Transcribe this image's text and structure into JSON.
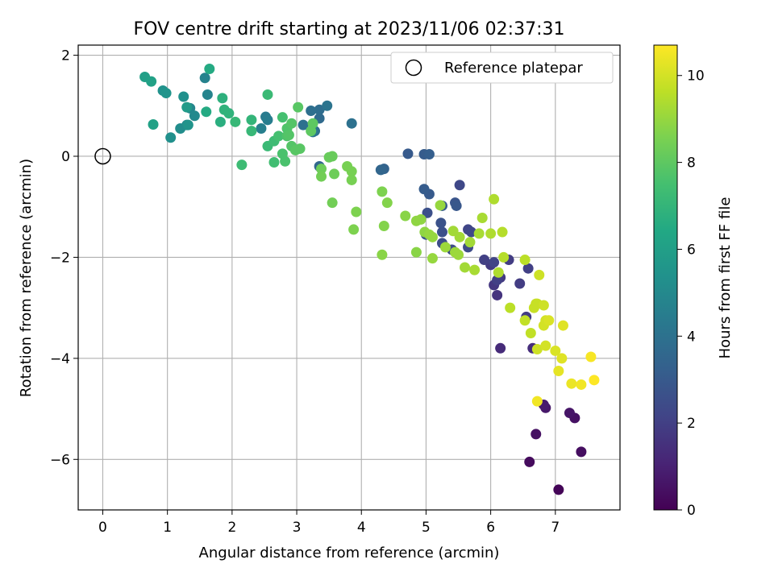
{
  "chart_data": {
    "type": "scatter",
    "title": "FOV centre drift starting at 2023/11/06 02:37:31",
    "xlabel": "Angular distance from reference (arcmin)",
    "ylabel": "Rotation from reference (arcmin)",
    "xlim": [
      -0.38,
      8.0
    ],
    "ylim": [
      -7.0,
      2.2
    ],
    "xticks": [
      "0",
      "1",
      "2",
      "3",
      "4",
      "5",
      "6",
      "7"
    ],
    "yticks": [
      "2",
      "0",
      "−2",
      "−4",
      "−6"
    ],
    "xtick_values": [
      0,
      1,
      2,
      3,
      4,
      5,
      6,
      7
    ],
    "ytick_values": [
      2,
      0,
      -2,
      -4,
      -6
    ],
    "grid": true,
    "legend": {
      "placement": "top-right",
      "entries": [
        "Reference platepar"
      ]
    },
    "reference_point": {
      "name": "Reference platepar",
      "x": 0,
      "y": 0
    },
    "colorbar": {
      "label": "Hours from first FF file",
      "range": [
        0,
        10.7
      ],
      "ticks": [
        "0",
        "2",
        "4",
        "6",
        "8",
        "10"
      ],
      "tick_values": [
        0,
        2,
        4,
        6,
        8,
        10
      ],
      "colormap": "viridis"
    },
    "points": [
      [
        7.05,
        -6.6,
        0.1
      ],
      [
        6.6,
        -6.05,
        0.3
      ],
      [
        7.4,
        -5.85,
        0.4
      ],
      [
        6.7,
        -5.5,
        0.5
      ],
      [
        7.3,
        -5.18,
        0.5
      ],
      [
        7.22,
        -5.08,
        0.6
      ],
      [
        6.85,
        -4.98,
        0.7
      ],
      [
        6.82,
        -4.92,
        0.8
      ],
      [
        6.15,
        -3.8,
        1.3
      ],
      [
        6.65,
        -3.8,
        1.4
      ],
      [
        6.1,
        -2.75,
        1.6
      ],
      [
        6.05,
        -2.55,
        1.7
      ],
      [
        6.15,
        -2.4,
        1.8
      ],
      [
        6.45,
        -2.52,
        1.9
      ],
      [
        6.58,
        -2.22,
        2.0
      ],
      [
        6.28,
        -2.05,
        1.9
      ],
      [
        6.0,
        -2.15,
        1.8
      ],
      [
        5.9,
        -2.05,
        2.0
      ],
      [
        6.05,
        -2.1,
        2.1
      ],
      [
        6.55,
        -3.18,
        1.9
      ],
      [
        6.1,
        -2.45,
        2.0
      ],
      [
        5.52,
        -0.57,
        2.3
      ],
      [
        5.65,
        -1.45,
        2.2
      ],
      [
        5.7,
        -1.5,
        2.3
      ],
      [
        5.65,
        -1.8,
        2.4
      ],
      [
        5.4,
        -1.85,
        2.4
      ],
      [
        5.25,
        -1.72,
        2.5
      ],
      [
        5.25,
        -1.5,
        2.6
      ],
      [
        5.23,
        -1.32,
        2.7
      ],
      [
        5.02,
        -1.12,
        2.6
      ],
      [
        5.0,
        -1.55,
        2.8
      ],
      [
        5.45,
        -0.92,
        2.8
      ],
      [
        5.47,
        -0.98,
        2.9
      ],
      [
        5.25,
        -0.98,
        3.0
      ],
      [
        5.05,
        -0.75,
        3.0
      ],
      [
        4.97,
        -0.65,
        3.1
      ],
      [
        4.72,
        0.05,
        3.0
      ],
      [
        4.97,
        0.04,
        3.1
      ],
      [
        5.05,
        0.04,
        3.2
      ],
      [
        4.35,
        -0.25,
        3.4
      ],
      [
        4.3,
        -0.27,
        3.5
      ],
      [
        3.35,
        -0.2,
        3.6
      ],
      [
        3.35,
        0.75,
        3.7
      ],
      [
        3.35,
        0.92,
        3.8
      ],
      [
        3.28,
        0.5,
        3.9
      ],
      [
        3.22,
        0.9,
        3.9
      ],
      [
        3.1,
        0.62,
        4.0
      ],
      [
        3.47,
        1.0,
        4.1
      ],
      [
        3.85,
        0.65,
        4.0
      ],
      [
        3.25,
        0.48,
        4.2
      ],
      [
        2.52,
        0.78,
        4.4
      ],
      [
        2.55,
        0.72,
        4.5
      ],
      [
        2.45,
        0.55,
        4.6
      ],
      [
        1.58,
        1.55,
        4.7
      ],
      [
        1.62,
        1.22,
        4.8
      ],
      [
        1.35,
        0.95,
        4.9
      ],
      [
        1.42,
        0.8,
        5.0
      ],
      [
        1.3,
        0.62,
        5.1
      ],
      [
        1.2,
        0.55,
        5.2
      ],
      [
        1.05,
        0.37,
        5.3
      ],
      [
        1.25,
        1.18,
        5.3
      ],
      [
        0.93,
        1.3,
        5.4
      ],
      [
        0.98,
        1.25,
        5.5
      ],
      [
        1.32,
        0.62,
        5.5
      ],
      [
        1.3,
        0.97,
        5.8
      ],
      [
        0.65,
        1.57,
        6.0
      ],
      [
        0.75,
        1.48,
        6.1
      ],
      [
        0.78,
        0.63,
        6.1
      ],
      [
        1.65,
        1.73,
        6.5
      ],
      [
        1.6,
        0.88,
        6.5
      ],
      [
        1.82,
        0.68,
        6.7
      ],
      [
        1.85,
        1.15,
        6.8
      ],
      [
        1.88,
        0.92,
        6.9
      ],
      [
        1.95,
        0.85,
        6.9
      ],
      [
        2.05,
        0.68,
        7.1
      ],
      [
        2.3,
        0.72,
        7.0
      ],
      [
        2.3,
        0.5,
        7.1
      ],
      [
        2.15,
        -0.17,
        7.3
      ],
      [
        2.55,
        1.22,
        7.2
      ],
      [
        2.55,
        0.2,
        7.2
      ],
      [
        2.65,
        0.3,
        7.3
      ],
      [
        2.65,
        -0.12,
        7.4
      ],
      [
        2.72,
        0.4,
        7.5
      ],
      [
        2.78,
        0.77,
        7.5
      ],
      [
        2.78,
        0.05,
        7.6
      ],
      [
        2.82,
        -0.1,
        7.6
      ],
      [
        2.85,
        0.55,
        7.7
      ],
      [
        2.85,
        0.4,
        7.7
      ],
      [
        2.88,
        0.42,
        7.8
      ],
      [
        2.92,
        0.65,
        7.8
      ],
      [
        2.92,
        0.2,
        7.8
      ],
      [
        2.98,
        0.12,
        7.9
      ],
      [
        3.02,
        0.97,
        7.9
      ],
      [
        3.05,
        0.15,
        7.9
      ],
      [
        3.25,
        0.65,
        8.0
      ],
      [
        3.22,
        0.5,
        8.0
      ],
      [
        3.55,
        0.0,
        8.2
      ],
      [
        3.5,
        -0.02,
        8.2
      ],
      [
        3.58,
        -0.35,
        8.3
      ],
      [
        3.38,
        -0.25,
        8.3
      ],
      [
        3.38,
        -0.4,
        8.4
      ],
      [
        3.55,
        -0.92,
        8.4
      ],
      [
        3.78,
        -0.2,
        8.5
      ],
      [
        3.85,
        -0.3,
        8.5
      ],
      [
        3.85,
        -0.47,
        8.5
      ],
      [
        3.92,
        -1.1,
        8.6
      ],
      [
        3.88,
        -1.45,
        8.6
      ],
      [
        4.32,
        -0.7,
        8.6
      ],
      [
        4.4,
        -0.92,
        8.7
      ],
      [
        4.35,
        -1.38,
        8.7
      ],
      [
        4.32,
        -1.95,
        8.8
      ],
      [
        4.85,
        -1.9,
        8.8
      ],
      [
        4.68,
        -1.18,
        8.8
      ],
      [
        4.85,
        -1.28,
        8.9
      ],
      [
        4.92,
        -1.25,
        8.9
      ],
      [
        4.98,
        -1.5,
        8.9
      ],
      [
        5.05,
        -1.55,
        9.0
      ],
      [
        5.1,
        -2.02,
        9.0
      ],
      [
        5.1,
        -1.6,
        9.0
      ],
      [
        5.22,
        -0.97,
        9.0
      ],
      [
        5.3,
        -1.8,
        9.1
      ],
      [
        5.45,
        -1.9,
        9.1
      ],
      [
        5.5,
        -1.95,
        9.1
      ],
      [
        5.42,
        -1.48,
        9.2
      ],
      [
        5.52,
        -1.6,
        9.2
      ],
      [
        5.6,
        -2.2,
        9.2
      ],
      [
        5.68,
        -1.7,
        9.2
      ],
      [
        5.82,
        -1.53,
        9.3
      ],
      [
        5.75,
        -2.25,
        9.3
      ],
      [
        5.87,
        -1.22,
        9.3
      ],
      [
        6.0,
        -1.53,
        9.4
      ],
      [
        6.05,
        -0.85,
        9.4
      ],
      [
        6.12,
        -2.3,
        9.4
      ],
      [
        6.18,
        -1.5,
        9.5
      ],
      [
        6.2,
        -2.0,
        9.5
      ],
      [
        6.3,
        -3.0,
        9.6
      ],
      [
        6.53,
        -2.05,
        9.6
      ],
      [
        6.53,
        -3.25,
        9.7
      ],
      [
        6.62,
        -3.5,
        9.7
      ],
      [
        6.67,
        -3.0,
        9.8
      ],
      [
        6.7,
        -2.92,
        9.8
      ],
      [
        6.72,
        -2.92,
        9.8
      ],
      [
        6.72,
        -3.82,
        9.9
      ],
      [
        6.82,
        -2.95,
        9.9
      ],
      [
        6.75,
        -2.35,
        9.9
      ],
      [
        6.85,
        -3.25,
        10.0
      ],
      [
        6.82,
        -3.35,
        10.0
      ],
      [
        6.85,
        -3.75,
        10.0
      ],
      [
        6.9,
        -3.25,
        10.1
      ],
      [
        7.0,
        -3.85,
        10.1
      ],
      [
        7.1,
        -4.0,
        10.2
      ],
      [
        7.12,
        -3.35,
        10.2
      ],
      [
        7.05,
        -4.25,
        10.3
      ],
      [
        7.25,
        -4.5,
        10.4
      ],
      [
        7.4,
        -4.52,
        10.5
      ],
      [
        7.55,
        -3.97,
        10.6
      ],
      [
        7.6,
        -4.43,
        10.7
      ],
      [
        6.72,
        -4.85,
        10.5
      ]
    ]
  }
}
